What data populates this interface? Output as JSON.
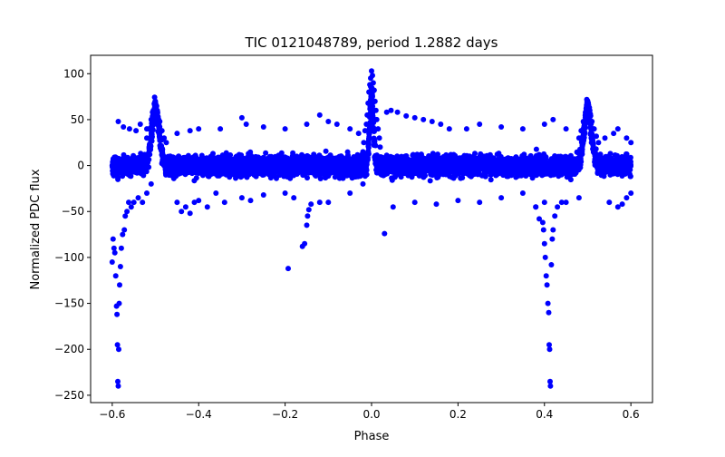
{
  "chart_data": {
    "type": "scatter",
    "title": "TIC 0121048789, period 1.2882 days",
    "xlabel": "Phase",
    "ylabel": "Normalized PDC flux",
    "xlim": [
      -0.65,
      0.65
    ],
    "ylim": [
      -258,
      120
    ],
    "xticks": [
      -0.6,
      -0.4,
      -0.2,
      0.0,
      0.2,
      0.4,
      0.6
    ],
    "xtick_labels": [
      "−0.6",
      "−0.4",
      "−0.2",
      "0.0",
      "0.2",
      "0.4",
      "0.6"
    ],
    "yticks": [
      100,
      50,
      0,
      -50,
      -100,
      -150,
      -200,
      -250
    ],
    "ytick_labels": [
      "100",
      "50",
      "0",
      "−50",
      "−100",
      "−150",
      "−200",
      "−250"
    ],
    "grid": false,
    "marker_color": "#0000ff",
    "series": [
      {
        "points": [
          [
            -0.6,
            -105
          ],
          [
            -0.598,
            -80
          ],
          [
            -0.596,
            -90
          ],
          [
            -0.594,
            -95
          ],
          [
            -0.592,
            -120
          ],
          [
            -0.59,
            -153
          ],
          [
            -0.589,
            -162
          ],
          [
            -0.588,
            -195
          ],
          [
            -0.587,
            -235
          ],
          [
            -0.586,
            -240
          ],
          [
            -0.585,
            -200
          ],
          [
            -0.584,
            -150
          ],
          [
            -0.583,
            -130
          ],
          [
            -0.581,
            -110
          ],
          [
            -0.579,
            -90
          ],
          [
            -0.576,
            -75
          ],
          [
            -0.572,
            -70
          ],
          [
            -0.57,
            -55
          ],
          [
            -0.566,
            -50
          ],
          [
            -0.562,
            -40
          ],
          [
            -0.556,
            -45
          ],
          [
            -0.55,
            -40
          ],
          [
            -0.54,
            -35
          ],
          [
            -0.53,
            -40
          ],
          [
            -0.52,
            -30
          ],
          [
            -0.51,
            -20
          ],
          [
            -0.586,
            48
          ],
          [
            -0.574,
            42
          ],
          [
            -0.56,
            40
          ],
          [
            -0.545,
            38
          ],
          [
            -0.535,
            45
          ],
          [
            -0.52,
            40
          ],
          [
            -0.5,
            70
          ],
          [
            -0.502,
            66
          ],
          [
            -0.498,
            64
          ],
          [
            -0.505,
            60
          ],
          [
            -0.495,
            58
          ],
          [
            -0.51,
            50
          ],
          [
            -0.49,
            48
          ],
          [
            -0.515,
            40
          ],
          [
            -0.485,
            38
          ],
          [
            -0.48,
            30
          ],
          [
            -0.52,
            30
          ],
          [
            -0.475,
            25
          ],
          [
            -0.45,
            -40
          ],
          [
            -0.44,
            -50
          ],
          [
            -0.43,
            -45
          ],
          [
            -0.42,
            -52
          ],
          [
            -0.41,
            -40
          ],
          [
            -0.4,
            -38
          ],
          [
            -0.38,
            -45
          ],
          [
            -0.36,
            -30
          ],
          [
            -0.34,
            -40
          ],
          [
            -0.3,
            -35
          ],
          [
            -0.28,
            -38
          ],
          [
            -0.25,
            -32
          ],
          [
            -0.2,
            -30
          ],
          [
            -0.18,
            -35
          ],
          [
            -0.1,
            -40
          ],
          [
            -0.05,
            -30
          ],
          [
            -0.02,
            -20
          ],
          [
            -0.45,
            35
          ],
          [
            -0.42,
            38
          ],
          [
            -0.4,
            40
          ],
          [
            -0.35,
            40
          ],
          [
            -0.3,
            52
          ],
          [
            -0.29,
            45
          ],
          [
            -0.25,
            42
          ],
          [
            -0.2,
            40
          ],
          [
            -0.15,
            45
          ],
          [
            -0.12,
            55
          ],
          [
            -0.1,
            48
          ],
          [
            -0.08,
            45
          ],
          [
            -0.05,
            40
          ],
          [
            -0.03,
            35
          ],
          [
            -0.193,
            -112
          ],
          [
            -0.16,
            -88
          ],
          [
            -0.155,
            -85
          ],
          [
            -0.15,
            -65
          ],
          [
            -0.148,
            -55
          ],
          [
            -0.145,
            -48
          ],
          [
            -0.14,
            -42
          ],
          [
            -0.12,
            -40
          ],
          [
            0.0,
            103
          ],
          [
            0.002,
            98
          ],
          [
            -0.002,
            95
          ],
          [
            0.004,
            90
          ],
          [
            -0.004,
            88
          ],
          [
            0.006,
            82
          ],
          [
            -0.006,
            80
          ],
          [
            0.008,
            70
          ],
          [
            -0.008,
            68
          ],
          [
            0.01,
            60
          ],
          [
            -0.01,
            55
          ],
          [
            0.012,
            50
          ],
          [
            -0.012,
            45
          ],
          [
            0.015,
            40
          ],
          [
            -0.015,
            38
          ],
          [
            0.018,
            30
          ],
          [
            -0.018,
            25
          ],
          [
            0.02,
            20
          ],
          [
            -0.02,
            15
          ],
          [
            0.035,
            58
          ],
          [
            0.045,
            60
          ],
          [
            0.06,
            58
          ],
          [
            0.08,
            54
          ],
          [
            0.1,
            52
          ],
          [
            0.12,
            50
          ],
          [
            0.14,
            48
          ],
          [
            0.16,
            45
          ],
          [
            0.18,
            40
          ],
          [
            0.22,
            40
          ],
          [
            0.25,
            45
          ],
          [
            0.3,
            42
          ],
          [
            0.35,
            40
          ],
          [
            0.4,
            45
          ],
          [
            0.42,
            50
          ],
          [
            0.45,
            40
          ],
          [
            0.03,
            -74
          ],
          [
            0.05,
            -45
          ],
          [
            0.1,
            -40
          ],
          [
            0.15,
            -42
          ],
          [
            0.2,
            -38
          ],
          [
            0.25,
            -40
          ],
          [
            0.3,
            -35
          ],
          [
            0.35,
            -30
          ],
          [
            0.38,
            -45
          ],
          [
            0.4,
            -40
          ],
          [
            0.45,
            -40
          ],
          [
            0.48,
            -35
          ],
          [
            0.396,
            -62
          ],
          [
            0.398,
            -70
          ],
          [
            0.4,
            -85
          ],
          [
            0.402,
            -100
          ],
          [
            0.404,
            -120
          ],
          [
            0.406,
            -130
          ],
          [
            0.408,
            -150
          ],
          [
            0.41,
            -160
          ],
          [
            0.411,
            -195
          ],
          [
            0.412,
            -200
          ],
          [
            0.413,
            -235
          ],
          [
            0.414,
            -240
          ],
          [
            0.416,
            -108
          ],
          [
            0.418,
            -80
          ],
          [
            0.42,
            -70
          ],
          [
            0.424,
            -55
          ],
          [
            0.43,
            -45
          ],
          [
            0.44,
            -40
          ],
          [
            0.388,
            -58
          ],
          [
            0.38,
            -45
          ],
          [
            0.5,
            70
          ],
          [
            0.502,
            66
          ],
          [
            0.498,
            65
          ],
          [
            0.505,
            60
          ],
          [
            0.495,
            58
          ],
          [
            0.51,
            48
          ],
          [
            0.49,
            48
          ],
          [
            0.515,
            40
          ],
          [
            0.485,
            38
          ],
          [
            0.52,
            32
          ],
          [
            0.48,
            30
          ],
          [
            0.525,
            25
          ],
          [
            0.55,
            -40
          ],
          [
            0.57,
            -45
          ],
          [
            0.58,
            -42
          ],
          [
            0.59,
            -35
          ],
          [
            0.6,
            -30
          ],
          [
            0.6,
            25
          ],
          [
            0.59,
            30
          ],
          [
            0.57,
            40
          ],
          [
            0.56,
            35
          ],
          [
            0.54,
            30
          ]
        ]
      }
    ]
  }
}
